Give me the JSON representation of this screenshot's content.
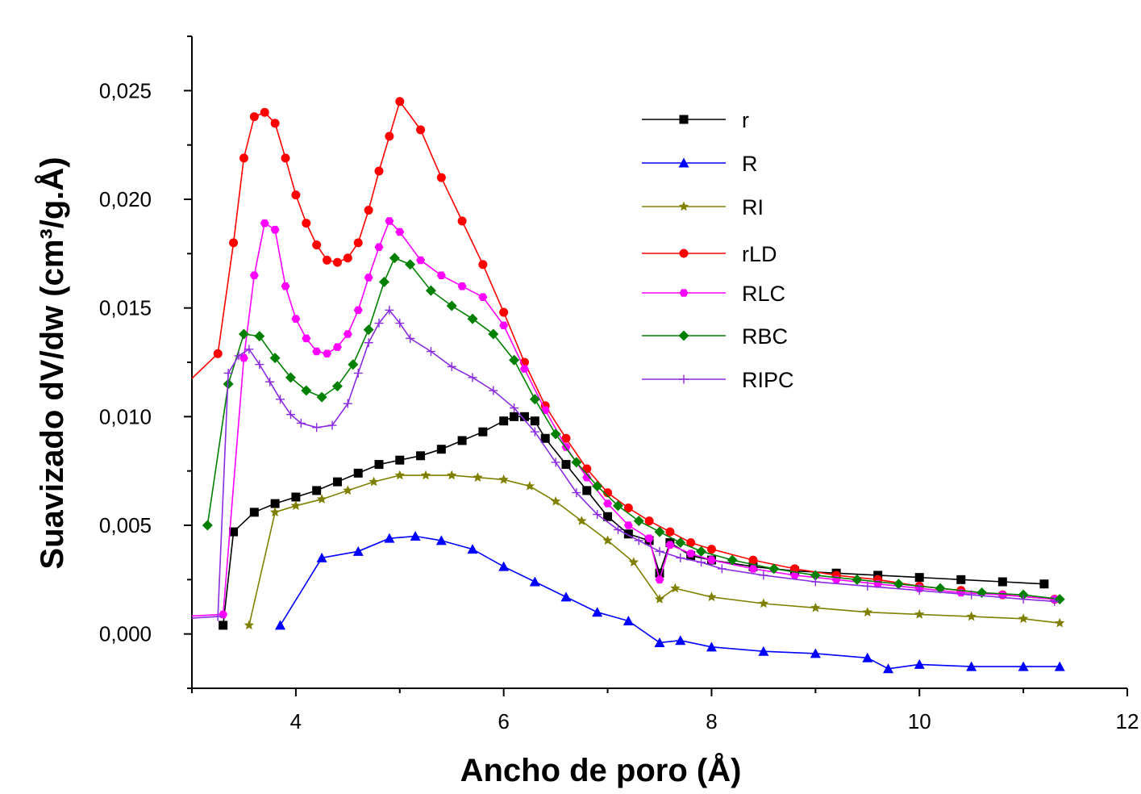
{
  "chart_data": {
    "type": "line",
    "xlabel": "Ancho de poro (Å)",
    "ylabel": "Suavizado dV/dw (cm³/g.Å)",
    "xlim": [
      3,
      12
    ],
    "ylim": [
      -0.0025,
      0.0275
    ],
    "x_ticks": [
      4,
      6,
      8,
      10,
      12
    ],
    "x_tick_labels": [
      "4",
      "6",
      "8",
      "10",
      "12"
    ],
    "y_ticks": [
      0.0,
      0.005,
      0.01,
      0.015,
      0.02,
      0.025
    ],
    "y_tick_labels": [
      "0,000",
      "0,005",
      "0,010",
      "0,015",
      "0,020",
      "0,025"
    ],
    "grid": false,
    "legend_position": "top-right",
    "series": [
      {
        "name": "r",
        "color": "#000000",
        "marker": "square",
        "x": [
          3.3,
          3.4,
          3.6,
          3.8,
          4.0,
          4.2,
          4.4,
          4.6,
          4.8,
          5.0,
          5.2,
          5.4,
          5.6,
          5.8,
          6.0,
          6.1,
          6.2,
          6.3,
          6.4,
          6.6,
          6.8,
          7.0,
          7.2,
          7.4,
          7.5,
          7.6,
          7.8,
          8.0,
          8.4,
          8.8,
          9.2,
          9.6,
          10.0,
          10.4,
          10.8,
          11.2
        ],
        "y": [
          0.0004,
          0.0047,
          0.0056,
          0.006,
          0.0063,
          0.0066,
          0.007,
          0.0074,
          0.0078,
          0.008,
          0.0082,
          0.0085,
          0.0089,
          0.0093,
          0.0098,
          0.01,
          0.01,
          0.0098,
          0.009,
          0.0078,
          0.0066,
          0.0054,
          0.0046,
          0.0043,
          0.0028,
          0.0042,
          0.0036,
          0.0034,
          0.0031,
          0.0029,
          0.0028,
          0.0027,
          0.0026,
          0.0025,
          0.0024,
          0.0023
        ]
      },
      {
        "name": "R",
        "color": "#0000ff",
        "marker": "triangle",
        "x": [
          3.85,
          4.25,
          4.6,
          4.9,
          5.15,
          5.4,
          5.7,
          6.0,
          6.3,
          6.6,
          6.9,
          7.2,
          7.5,
          7.7,
          8.0,
          8.5,
          9.0,
          9.5,
          9.7,
          10.0,
          10.5,
          11.0,
          11.35
        ],
        "y": [
          0.0004,
          0.0035,
          0.0038,
          0.0044,
          0.0045,
          0.0043,
          0.0039,
          0.0031,
          0.0024,
          0.0017,
          0.001,
          0.0006,
          -0.0004,
          -0.0003,
          -0.0006,
          -0.0008,
          -0.0009,
          -0.0011,
          -0.0016,
          -0.0014,
          -0.0015,
          -0.0015,
          -0.0015
        ]
      },
      {
        "name": "RI",
        "color": "#808000",
        "marker": "star",
        "x": [
          3.55,
          3.8,
          4.0,
          4.25,
          4.5,
          4.75,
          5.0,
          5.25,
          5.5,
          5.75,
          6.0,
          6.25,
          6.5,
          6.75,
          7.0,
          7.25,
          7.5,
          7.65,
          8.0,
          8.5,
          9.0,
          9.5,
          10.0,
          10.5,
          11.0,
          11.35
        ],
        "y": [
          0.0004,
          0.0056,
          0.0059,
          0.0062,
          0.0066,
          0.007,
          0.0073,
          0.0073,
          0.0073,
          0.0072,
          0.0071,
          0.0068,
          0.0061,
          0.0052,
          0.0043,
          0.0033,
          0.0016,
          0.0021,
          0.0017,
          0.0014,
          0.0012,
          0.001,
          0.0009,
          0.0008,
          0.0007,
          0.0005
        ]
      },
      {
        "name": "rLD",
        "color": "#ff0000",
        "marker": "circle",
        "x": [
          2.9,
          3.25,
          3.4,
          3.5,
          3.6,
          3.7,
          3.8,
          3.9,
          4.0,
          4.1,
          4.2,
          4.3,
          4.4,
          4.5,
          4.6,
          4.7,
          4.8,
          4.9,
          5.0,
          5.2,
          5.4,
          5.6,
          5.8,
          6.0,
          6.2,
          6.4,
          6.6,
          6.8,
          7.0,
          7.2,
          7.4,
          7.6,
          7.8,
          8.0,
          8.4,
          8.8,
          9.2,
          9.6,
          10.0,
          10.4,
          10.8,
          11.3
        ],
        "y": [
          0.0113,
          0.0129,
          0.018,
          0.0219,
          0.0238,
          0.024,
          0.0235,
          0.0219,
          0.0202,
          0.0189,
          0.0179,
          0.0172,
          0.0171,
          0.0173,
          0.018,
          0.0195,
          0.0213,
          0.0229,
          0.0245,
          0.0232,
          0.021,
          0.019,
          0.017,
          0.0148,
          0.0125,
          0.0105,
          0.009,
          0.0076,
          0.0065,
          0.0058,
          0.0052,
          0.0047,
          0.0042,
          0.0039,
          0.0034,
          0.003,
          0.0027,
          0.0025,
          0.0022,
          0.002,
          0.0018,
          0.0016
        ]
      },
      {
        "name": "RLC",
        "color": "#ff00ff",
        "marker": "hexagon",
        "x": [
          2.9,
          3.3,
          3.5,
          3.6,
          3.7,
          3.8,
          3.9,
          4.0,
          4.1,
          4.2,
          4.3,
          4.4,
          4.5,
          4.6,
          4.7,
          4.8,
          4.9,
          5.0,
          5.2,
          5.4,
          5.6,
          5.8,
          6.0,
          6.2,
          6.4,
          6.6,
          6.8,
          7.0,
          7.2,
          7.4,
          7.5,
          7.6,
          7.8,
          8.0,
          8.4,
          8.8,
          9.2,
          9.6,
          10.0,
          10.4,
          10.8,
          11.3
        ],
        "y": [
          0.0008,
          0.0009,
          0.0127,
          0.0165,
          0.0189,
          0.0186,
          0.016,
          0.0145,
          0.0136,
          0.013,
          0.0129,
          0.0132,
          0.0138,
          0.0149,
          0.0164,
          0.0178,
          0.019,
          0.0185,
          0.0172,
          0.0165,
          0.016,
          0.0155,
          0.0142,
          0.0122,
          0.0103,
          0.0086,
          0.0072,
          0.006,
          0.005,
          0.0044,
          0.0025,
          0.0041,
          0.0037,
          0.0034,
          0.003,
          0.0027,
          0.0025,
          0.0023,
          0.0021,
          0.0019,
          0.0018,
          0.0016
        ]
      },
      {
        "name": "RBC",
        "color": "#008000",
        "marker": "diamond",
        "x": [
          3.15,
          3.35,
          3.5,
          3.65,
          3.8,
          3.95,
          4.1,
          4.25,
          4.4,
          4.55,
          4.7,
          4.85,
          4.95,
          5.1,
          5.3,
          5.5,
          5.7,
          5.9,
          6.1,
          6.3,
          6.5,
          6.7,
          6.9,
          7.1,
          7.3,
          7.5,
          7.7,
          7.9,
          8.2,
          8.6,
          9.0,
          9.4,
          9.8,
          10.2,
          10.6,
          11.0,
          11.35
        ],
        "y": [
          0.005,
          0.0115,
          0.0138,
          0.0137,
          0.0127,
          0.0118,
          0.0112,
          0.0109,
          0.0114,
          0.0124,
          0.014,
          0.0162,
          0.0173,
          0.017,
          0.0158,
          0.0151,
          0.0145,
          0.0138,
          0.0126,
          0.0108,
          0.0092,
          0.0079,
          0.0068,
          0.0059,
          0.0052,
          0.0047,
          0.0042,
          0.0038,
          0.0034,
          0.003,
          0.0027,
          0.0025,
          0.0023,
          0.0021,
          0.0019,
          0.0018,
          0.0016
        ]
      },
      {
        "name": "RIPC",
        "color": "#8a2be2",
        "marker": "plus",
        "x": [
          2.9,
          3.25,
          3.35,
          3.45,
          3.55,
          3.65,
          3.75,
          3.85,
          3.95,
          4.05,
          4.2,
          4.35,
          4.5,
          4.6,
          4.7,
          4.8,
          4.9,
          5.0,
          5.1,
          5.3,
          5.5,
          5.7,
          5.9,
          6.1,
          6.3,
          6.5,
          6.7,
          6.9,
          7.1,
          7.3,
          7.5,
          7.7,
          7.9,
          8.1,
          8.5,
          9.0,
          9.5,
          10.0,
          10.5,
          11.0,
          11.3
        ],
        "y": [
          0.0007,
          0.0008,
          0.012,
          0.0128,
          0.0131,
          0.0124,
          0.0116,
          0.0108,
          0.0101,
          0.0097,
          0.0095,
          0.0096,
          0.0106,
          0.012,
          0.0134,
          0.0143,
          0.0149,
          0.0143,
          0.0136,
          0.013,
          0.0123,
          0.0118,
          0.0112,
          0.0104,
          0.0093,
          0.0079,
          0.0065,
          0.0055,
          0.0048,
          0.0043,
          0.0038,
          0.0035,
          0.0033,
          0.003,
          0.0027,
          0.0024,
          0.0022,
          0.002,
          0.0018,
          0.0016,
          0.0015
        ]
      }
    ]
  }
}
